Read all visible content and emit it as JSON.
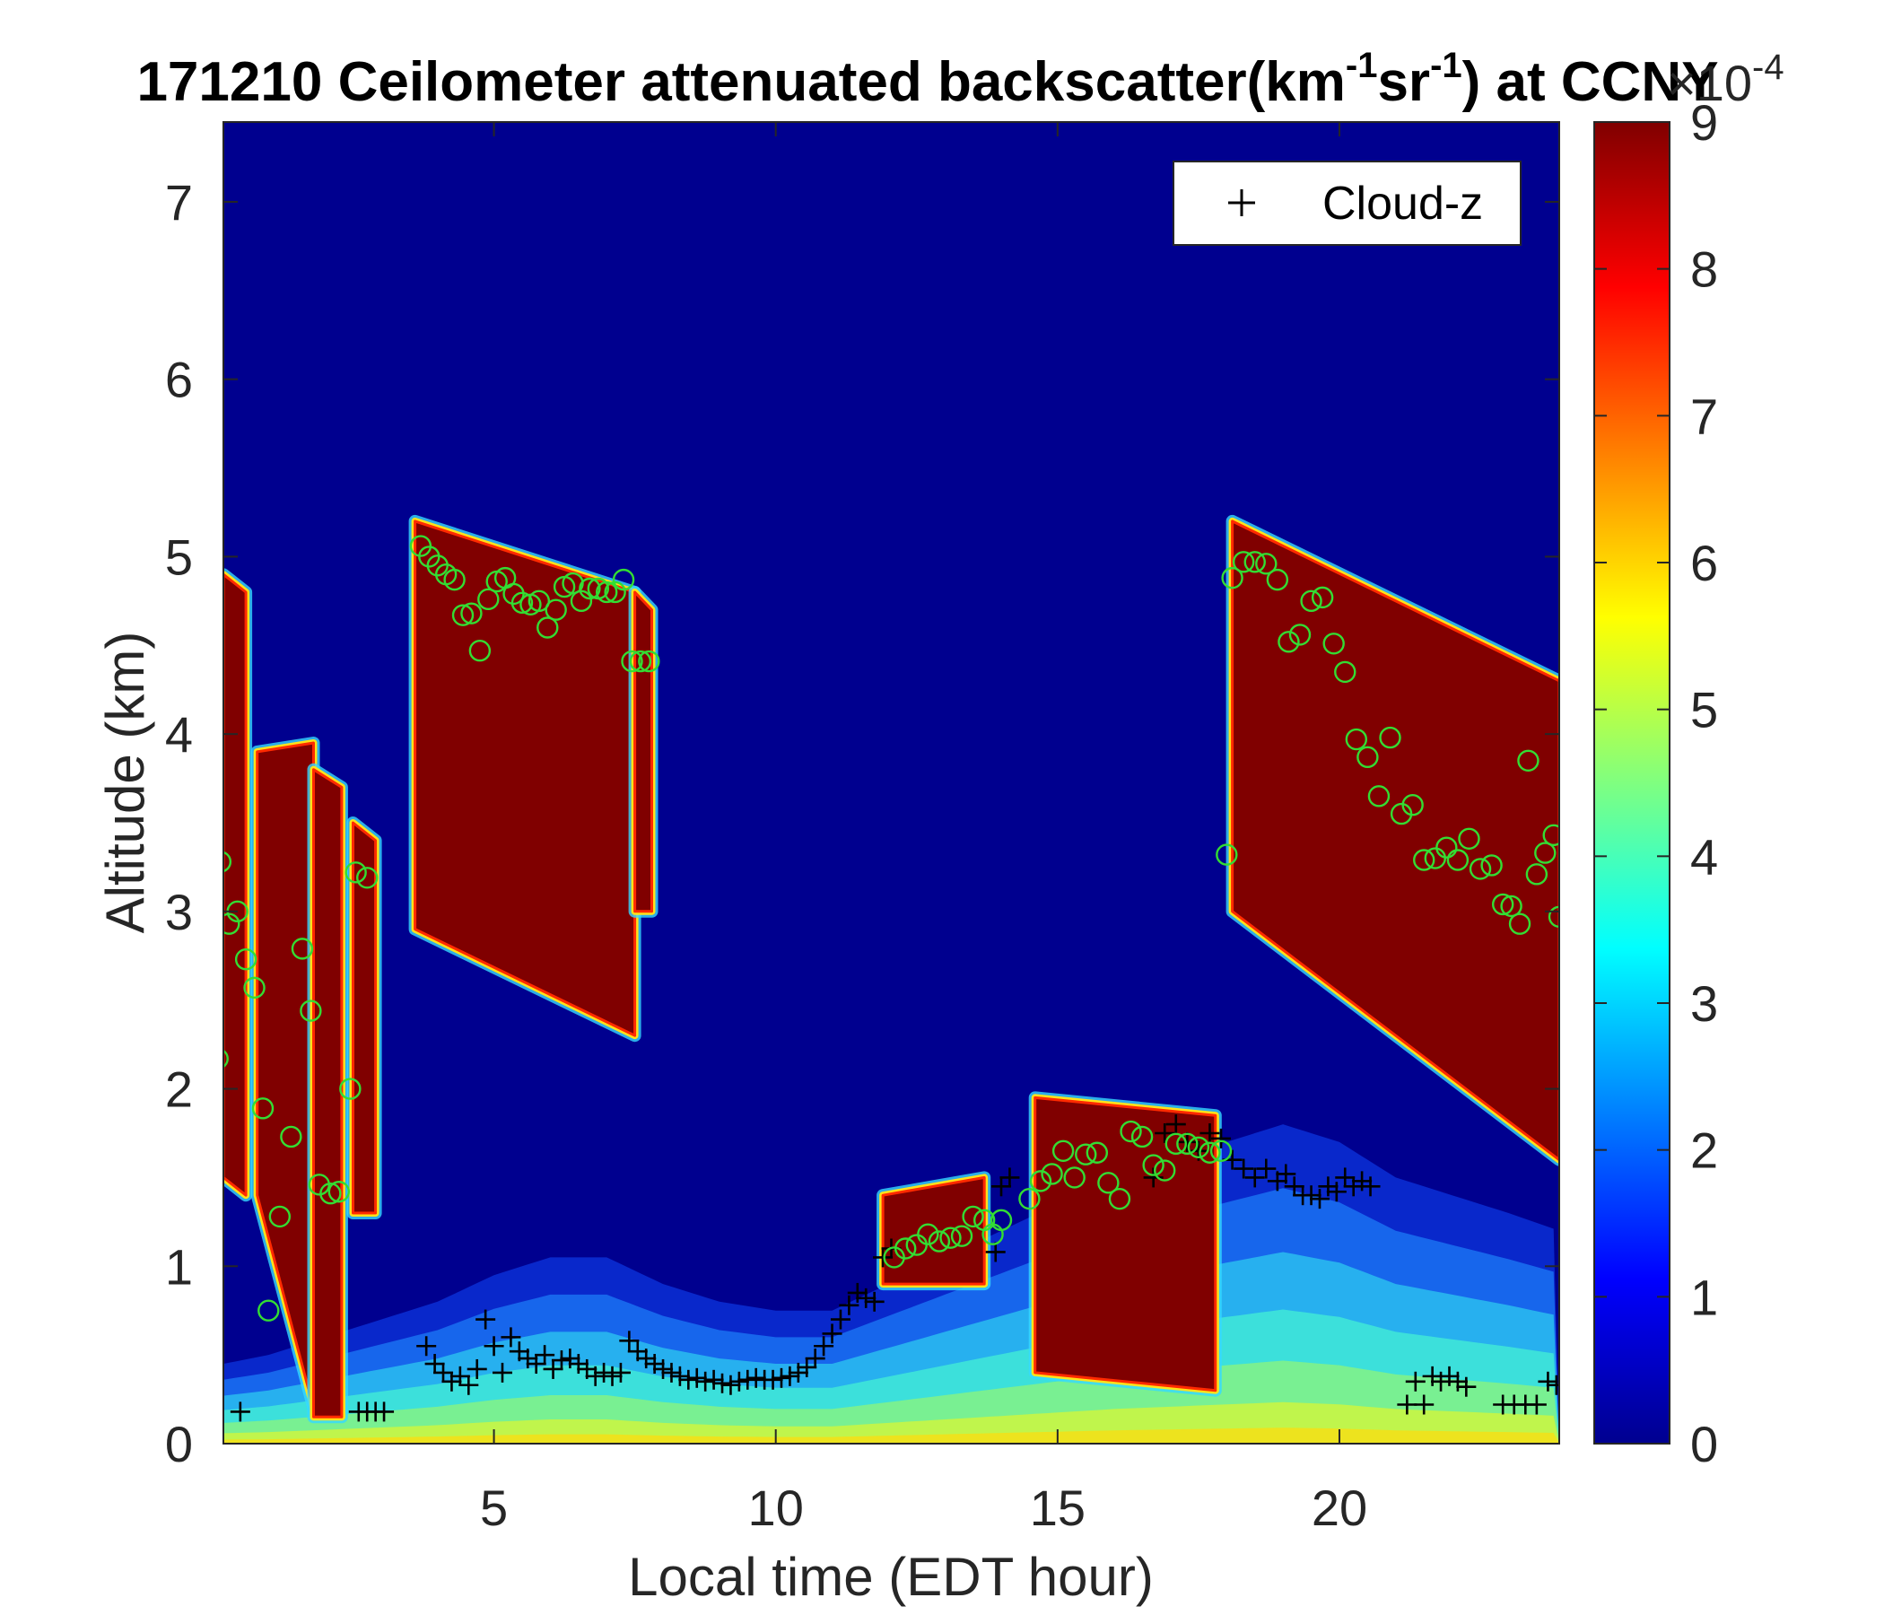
{
  "chart_data": {
    "type": "heatmap",
    "title_parts": [
      "171210 Ceilometer attenuated backscatter(km",
      "-1",
      "sr",
      "-1",
      ") at CCNY"
    ],
    "xlabel": "Local time (EDT hour)",
    "ylabel": "Altitude (km)",
    "xlim": [
      0.2,
      23.9
    ],
    "ylim": [
      0,
      7.45
    ],
    "xticks": [
      5,
      10,
      15,
      20
    ],
    "yticks": [
      0,
      1,
      2,
      3,
      4,
      5,
      6,
      7
    ],
    "colorbar": {
      "min": 0,
      "max": 9,
      "ticks": [
        0,
        1,
        2,
        3,
        4,
        5,
        6,
        7,
        8,
        9
      ],
      "exponent_base": "×10",
      "exponent_power": "-4",
      "colormap": "jet"
    },
    "legend": {
      "position": "top-right",
      "entries": [
        {
          "marker": "+",
          "label": "Cloud-z",
          "color": "#000000"
        }
      ]
    },
    "surface_aerosol_layer": [
      [
        0.2,
        0.45
      ],
      [
        1,
        0.5
      ],
      [
        2,
        0.6
      ],
      [
        3,
        0.7
      ],
      [
        4,
        0.8
      ],
      [
        5,
        0.95
      ],
      [
        6,
        1.05
      ],
      [
        7,
        1.05
      ],
      [
        8,
        0.9
      ],
      [
        9,
        0.8
      ],
      [
        10,
        0.75
      ],
      [
        11,
        0.75
      ],
      [
        12,
        0.9
      ],
      [
        13,
        1.05
      ],
      [
        14,
        1.2
      ],
      [
        15,
        1.35
      ],
      [
        16,
        1.5
      ],
      [
        17,
        1.6
      ],
      [
        18,
        1.7
      ],
      [
        19,
        1.8
      ],
      [
        20,
        1.7
      ],
      [
        21,
        1.5
      ],
      [
        22,
        1.4
      ],
      [
        23,
        1.3
      ],
      [
        23.9,
        1.2
      ]
    ],
    "cloud_layers": [
      {
        "x": [
          0.2,
          0.6
        ],
        "top": [
          4.9,
          4.8
        ],
        "bottom": [
          1.5,
          1.4
        ]
      },
      {
        "x": [
          0.8,
          1.8
        ],
        "top": [
          3.9,
          3.95
        ],
        "bottom": [
          1.4,
          0.2
        ]
      },
      {
        "x": [
          1.8,
          2.3
        ],
        "top": [
          3.8,
          3.7
        ],
        "bottom": [
          0.15,
          0.15
        ]
      },
      {
        "x": [
          2.5,
          2.9
        ],
        "top": [
          3.5,
          3.4
        ],
        "bottom": [
          1.3,
          1.3
        ]
      },
      {
        "x": [
          3.6,
          7.5
        ],
        "top": [
          5.2,
          4.8
        ],
        "bottom": [
          2.9,
          2.3
        ]
      },
      {
        "x": [
          7.5,
          7.8
        ],
        "top": [
          4.8,
          4.7
        ],
        "bottom": [
          3.0,
          3.0
        ]
      },
      {
        "x": [
          11.9,
          13.7
        ],
        "top": [
          1.4,
          1.5
        ],
        "bottom": [
          0.9,
          0.9
        ]
      },
      {
        "x": [
          14.6,
          17.8
        ],
        "top": [
          1.95,
          1.85
        ],
        "bottom": [
          0.4,
          0.3
        ]
      },
      {
        "x": [
          18.1,
          23.9
        ],
        "top": [
          5.2,
          4.3
        ],
        "bottom": [
          3.0,
          1.6
        ]
      }
    ],
    "series": [
      {
        "name": "Cloud-z",
        "marker": "+",
        "color": "#000000",
        "x": [
          0.5,
          2.6,
          2.75,
          2.9,
          3.05,
          3.8,
          3.95,
          4.1,
          4.25,
          4.4,
          4.55,
          4.7,
          4.85,
          5.0,
          5.15,
          5.3,
          5.45,
          5.6,
          5.75,
          5.9,
          6.05,
          6.2,
          6.35,
          6.5,
          6.65,
          6.8,
          6.95,
          7.1,
          7.25,
          7.4,
          7.55,
          7.7,
          7.85,
          8.0,
          8.15,
          8.3,
          8.45,
          8.6,
          8.75,
          8.9,
          9.05,
          9.2,
          9.35,
          9.5,
          9.65,
          9.8,
          9.95,
          10.1,
          10.25,
          10.4,
          10.55,
          10.7,
          10.85,
          11.0,
          11.15,
          11.3,
          11.45,
          11.6,
          11.75,
          11.9,
          12.05,
          13.9,
          14.0,
          14.15,
          16.7,
          16.9,
          17.1,
          17.3,
          17.5,
          17.7,
          17.9,
          18.1,
          18.3,
          18.5,
          18.7,
          18.9,
          19.05,
          19.2,
          19.35,
          19.5,
          19.65,
          19.8,
          19.95,
          20.1,
          20.25,
          20.4,
          20.55,
          21.2,
          21.35,
          21.5,
          21.65,
          21.8,
          21.95,
          22.1,
          22.25,
          22.9,
          23.1,
          23.3,
          23.5,
          23.7,
          23.85
        ],
        "y": [
          0.18,
          0.18,
          0.18,
          0.18,
          0.18,
          0.55,
          0.45,
          0.4,
          0.35,
          0.38,
          0.33,
          0.42,
          0.7,
          0.55,
          0.4,
          0.6,
          0.52,
          0.48,
          0.45,
          0.5,
          0.42,
          0.47,
          0.48,
          0.45,
          0.42,
          0.38,
          0.4,
          0.38,
          0.4,
          0.58,
          0.52,
          0.48,
          0.45,
          0.42,
          0.4,
          0.38,
          0.36,
          0.37,
          0.35,
          0.36,
          0.34,
          0.33,
          0.35,
          0.36,
          0.37,
          0.36,
          0.36,
          0.37,
          0.38,
          0.4,
          0.43,
          0.48,
          0.55,
          0.62,
          0.7,
          0.78,
          0.85,
          0.82,
          0.8,
          1.05,
          1.1,
          1.08,
          1.45,
          1.5,
          1.5,
          1.75,
          1.8,
          1.7,
          1.65,
          1.75,
          1.72,
          1.6,
          1.55,
          1.5,
          1.55,
          1.48,
          1.52,
          1.45,
          1.4,
          1.4,
          1.38,
          1.45,
          1.42,
          1.5,
          1.45,
          1.48,
          1.45,
          0.22,
          0.35,
          0.22,
          0.38,
          0.35,
          0.38,
          0.35,
          0.32,
          0.22,
          0.22,
          0.22,
          0.22,
          0.35,
          0.33
        ]
      },
      {
        "name": "",
        "marker": "o",
        "color": "#33dd33",
        "x": [
          0.1,
          0.15,
          0.3,
          0.45,
          0.6,
          0.75,
          0.9,
          1.0,
          1.2,
          1.4,
          1.6,
          1.75,
          1.9,
          2.1,
          2.25,
          2.45,
          2.55,
          2.75,
          3.7,
          3.85,
          4.0,
          4.15,
          4.3,
          4.45,
          4.6,
          4.75,
          4.9,
          5.05,
          5.2,
          5.35,
          5.5,
          5.65,
          5.8,
          5.95,
          6.1,
          6.25,
          6.4,
          6.55,
          6.7,
          6.85,
          7.0,
          7.15,
          7.3,
          7.45,
          7.6,
          7.75,
          12.1,
          12.3,
          12.5,
          12.7,
          12.9,
          13.1,
          13.3,
          13.5,
          13.7,
          13.85,
          14.0,
          14.5,
          14.7,
          14.9,
          15.1,
          15.3,
          15.5,
          15.7,
          15.9,
          16.1,
          16.3,
          16.5,
          16.7,
          16.9,
          17.1,
          17.3,
          17.5,
          17.7,
          17.9,
          18.0,
          18.1,
          18.3,
          18.5,
          18.7,
          18.9,
          19.1,
          19.3,
          19.5,
          19.7,
          19.9,
          20.1,
          20.3,
          20.5,
          20.7,
          20.9,
          21.1,
          21.3,
          21.5,
          21.7,
          21.9,
          22.1,
          22.3,
          22.5,
          22.7,
          22.9,
          23.05,
          23.2,
          23.35,
          23.5,
          23.65,
          23.8,
          23.9
        ],
        "y": [
          2.17,
          3.28,
          2.93,
          3.0,
          2.73,
          2.57,
          1.89,
          0.75,
          1.28,
          1.73,
          2.79,
          2.44,
          1.46,
          1.41,
          1.42,
          2.0,
          3.22,
          3.19,
          5.06,
          5.0,
          4.95,
          4.9,
          4.87,
          4.67,
          4.68,
          4.47,
          4.76,
          4.86,
          4.88,
          4.79,
          4.74,
          4.73,
          4.75,
          4.6,
          4.7,
          4.83,
          4.85,
          4.75,
          4.82,
          4.82,
          4.8,
          4.8,
          4.87,
          4.41,
          4.41,
          4.41,
          1.05,
          1.1,
          1.12,
          1.18,
          1.14,
          1.16,
          1.17,
          1.28,
          1.26,
          1.18,
          1.26,
          1.38,
          1.48,
          1.52,
          1.65,
          1.5,
          1.63,
          1.64,
          1.47,
          1.38,
          1.76,
          1.73,
          1.57,
          1.54,
          1.69,
          1.69,
          1.67,
          1.64,
          1.65,
          3.32,
          4.88,
          4.97,
          4.97,
          4.96,
          4.87,
          4.52,
          4.56,
          4.75,
          4.77,
          4.51,
          4.35,
          3.97,
          3.87,
          3.65,
          3.98,
          3.55,
          3.6,
          3.29,
          3.3,
          3.36,
          3.29,
          3.41,
          3.24,
          3.26,
          3.04,
          3.03,
          2.93,
          3.85,
          3.21,
          3.33,
          3.43,
          2.97
        ]
      }
    ]
  }
}
